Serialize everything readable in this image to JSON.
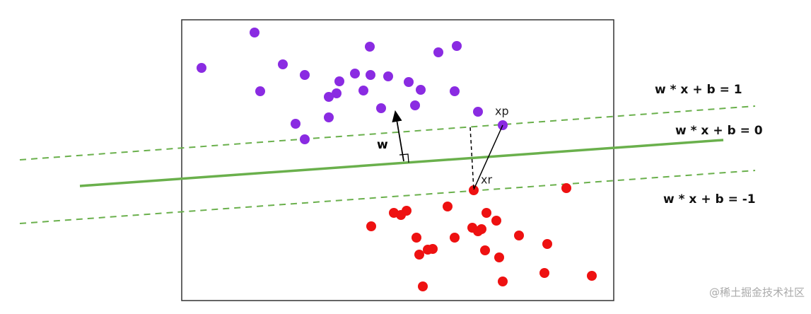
{
  "labels": {
    "margin_upper": "w * x + b = 1",
    "boundary": "w * x + b = 0",
    "margin_lower": "w * x + b = -1",
    "w": "w",
    "xp": "xp",
    "xr": "xr"
  },
  "watermark": "@稀土掘金技术社区"
}
